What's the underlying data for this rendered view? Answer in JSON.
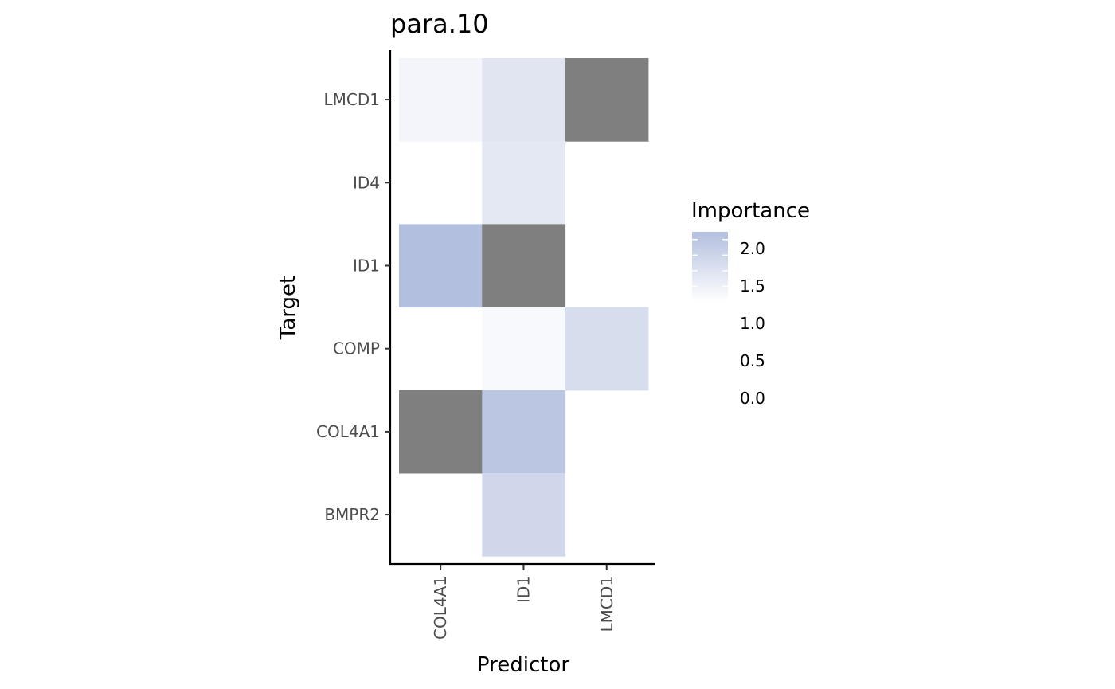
{
  "chart_data": {
    "type": "heatmap",
    "title": "para.10",
    "xlabel": "Predictor",
    "ylabel": "Target",
    "x_categories": [
      "COL4A1",
      "ID1",
      "LMCD1"
    ],
    "y_categories": [
      "BMPR2",
      "COL4A1",
      "COMP",
      "ID1",
      "ID4",
      "LMCD1"
    ],
    "cells": [
      {
        "x": "COL4A1",
        "y": "LMCD1",
        "value": 0.35
      },
      {
        "x": "ID1",
        "y": "LMCD1",
        "value": 0.9
      },
      {
        "x": "LMCD1",
        "y": "LMCD1",
        "value": null
      },
      {
        "x": "ID1",
        "y": "ID4",
        "value": 0.8
      },
      {
        "x": "COL4A1",
        "y": "ID1",
        "value": 2.25
      },
      {
        "x": "ID1",
        "y": "ID1",
        "value": null
      },
      {
        "x": "ID1",
        "y": "COMP",
        "value": 0.2
      },
      {
        "x": "LMCD1",
        "y": "COMP",
        "value": 1.2
      },
      {
        "x": "COL4A1",
        "y": "COL4A1",
        "value": null
      },
      {
        "x": "ID1",
        "y": "COL4A1",
        "value": 2.0
      },
      {
        "x": "ID1",
        "y": "BMPR2",
        "value": 1.4
      }
    ],
    "na_color": "#7f7f7f",
    "color_low": "#ffffff",
    "color_high": "#b3bfde",
    "value_range": [
      0.0,
      2.25
    ],
    "legend": {
      "title": "Importance",
      "breaks": [
        2.0,
        1.5,
        1.0,
        0.5,
        0.0
      ],
      "labels": [
        "2.0",
        "1.5",
        "1.0",
        "0.5",
        "0.0"
      ],
      "position": "right"
    },
    "grid": false
  }
}
